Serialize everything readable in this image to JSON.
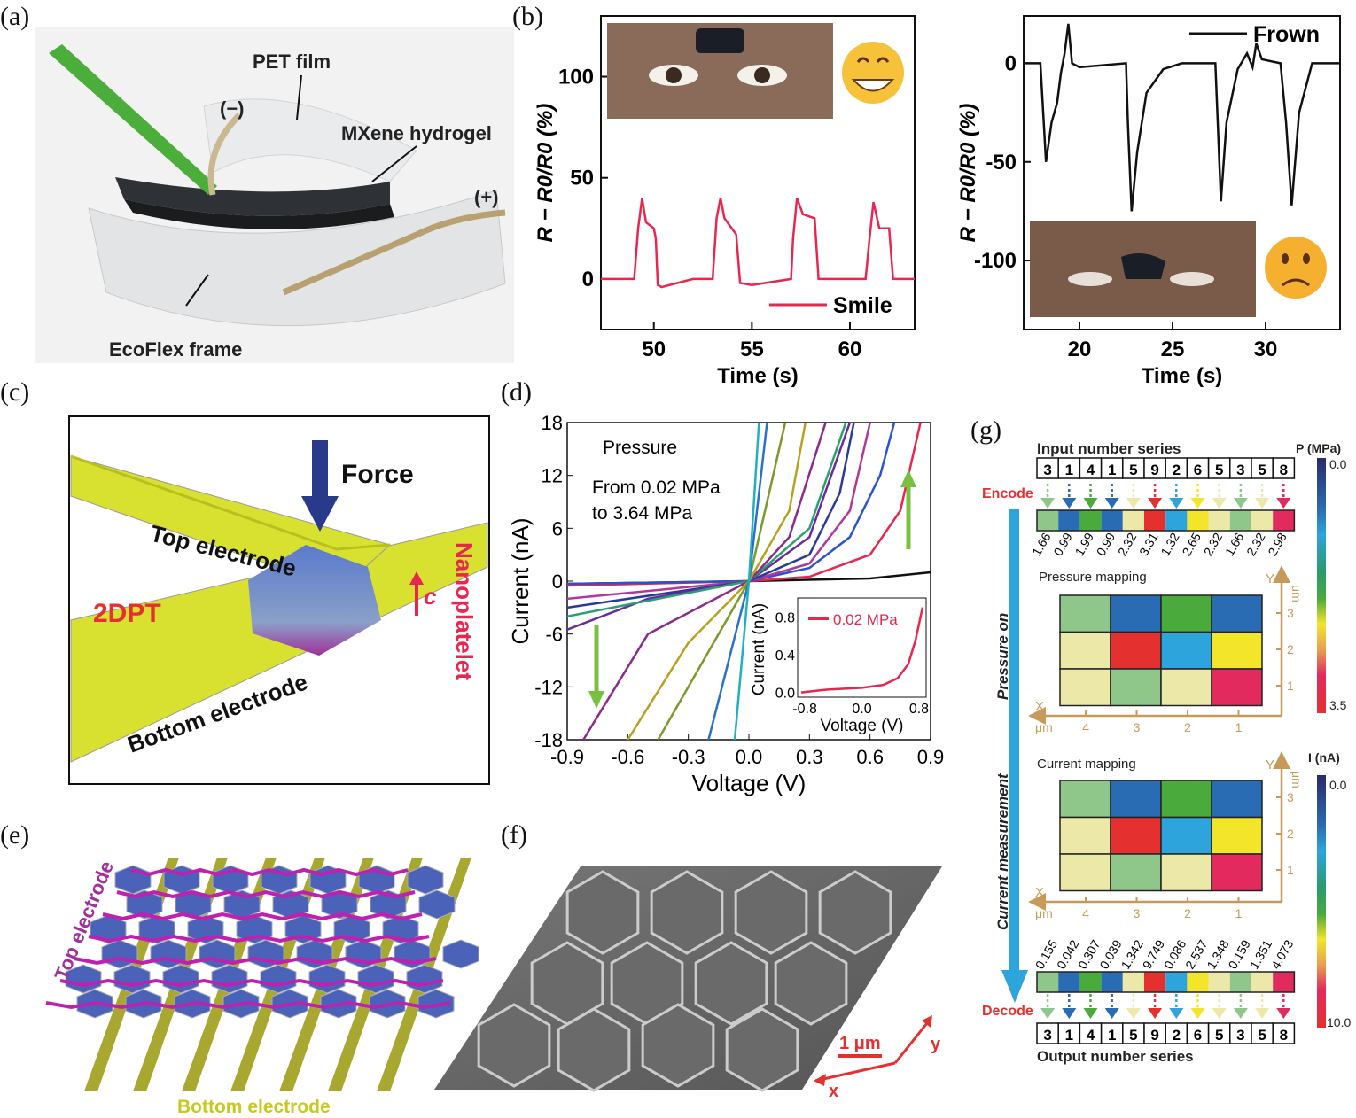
{
  "panel_labels": [
    "(a)",
    "(b)",
    "(c)",
    "(d)",
    "(e)",
    "(f)",
    "(g)"
  ],
  "panel_a": {
    "pet_film": "PET film",
    "minus": "(−)",
    "plus": "(+)",
    "mxene": "MXene hydrogel",
    "ecoflex": "EcoFlex frame"
  },
  "panel_c": {
    "force": "Force",
    "top_electrode": "Top electrode",
    "bottom_electrode": "Bottom electrode",
    "material": "2DPT",
    "nanoplatelet": "Nanoplatelet",
    "axis_c": "c"
  },
  "panel_e": {
    "top_electrode": "Top electrode",
    "bottom_electrode": "Bottom electrode"
  },
  "panel_f": {
    "scale": "1 μm",
    "x": "x",
    "y": "y"
  },
  "chart_data": [
    {
      "id": "b-smile",
      "type": "line",
      "xlabel": "Time (s)",
      "ylabel": "R − R0/R0 (%)",
      "xlim": [
        47.3,
        63.3
      ],
      "ylim": [
        -25,
        130
      ],
      "xticks": [
        50,
        55,
        60
      ],
      "yticks": [
        0,
        50,
        100
      ],
      "legend": "bottom-right",
      "series": [
        {
          "name": "Smile",
          "color": "#e8264f",
          "points": [
            [
              47.3,
              0
            ],
            [
              49.0,
              0
            ],
            [
              49.2,
              25
            ],
            [
              49.4,
              40
            ],
            [
              49.6,
              28
            ],
            [
              50.0,
              25
            ],
            [
              50.1,
              20
            ],
            [
              50.2,
              -3
            ],
            [
              50.4,
              -4
            ],
            [
              52,
              0
            ],
            [
              53.0,
              0
            ],
            [
              53.2,
              30
            ],
            [
              53.4,
              40
            ],
            [
              53.6,
              30
            ],
            [
              54.2,
              22
            ],
            [
              54.4,
              -2
            ],
            [
              55,
              -3
            ],
            [
              57,
              0
            ],
            [
              57.1,
              20
            ],
            [
              57.3,
              40
            ],
            [
              57.6,
              32
            ],
            [
              58.2,
              30
            ],
            [
              58.4,
              0
            ],
            [
              60.8,
              0
            ],
            [
              61.0,
              20
            ],
            [
              61.2,
              38
            ],
            [
              61.5,
              25
            ],
            [
              62,
              25
            ],
            [
              62.2,
              0
            ],
            [
              63.3,
              0
            ]
          ]
        }
      ]
    },
    {
      "id": "b-frown",
      "type": "line",
      "xlabel": "Time (s)",
      "ylabel": "R − R0/R0 (%)",
      "xlim": [
        17,
        34
      ],
      "ylim": [
        -135,
        24
      ],
      "xticks": [
        20,
        25,
        30
      ],
      "yticks": [
        0,
        -50,
        -100
      ],
      "legend": "top-right",
      "series": [
        {
          "name": "Frown",
          "color": "#111111",
          "points": [
            [
              17,
              0
            ],
            [
              17.9,
              0
            ],
            [
              18.2,
              -50
            ],
            [
              18.5,
              -30
            ],
            [
              18.8,
              -20
            ],
            [
              19.0,
              -5
            ],
            [
              19.2,
              5
            ],
            [
              19.4,
              20
            ],
            [
              19.6,
              0
            ],
            [
              20,
              -2
            ],
            [
              22.5,
              0
            ],
            [
              22.6,
              -30
            ],
            [
              22.8,
              -75
            ],
            [
              23.1,
              -45
            ],
            [
              23.6,
              -15
            ],
            [
              24.5,
              -3
            ],
            [
              25.5,
              0
            ],
            [
              27.3,
              0
            ],
            [
              27.6,
              -70
            ],
            [
              27.9,
              -30
            ],
            [
              28.5,
              -3
            ],
            [
              29,
              5
            ],
            [
              29.3,
              -2
            ],
            [
              29.5,
              10
            ],
            [
              29.8,
              2
            ],
            [
              30.8,
              0
            ],
            [
              31.1,
              -30
            ],
            [
              31.4,
              -72
            ],
            [
              31.8,
              -25
            ],
            [
              32.5,
              0
            ],
            [
              34,
              0
            ]
          ]
        }
      ]
    },
    {
      "id": "d-iv",
      "type": "line",
      "xlabel": "Voltage (V)",
      "ylabel": "Current (nA)",
      "xlim": [
        -0.9,
        0.9
      ],
      "ylim": [
        -18,
        18
      ],
      "xticks": [
        "-0.9",
        "-0.6",
        "-0.3",
        "0.0",
        "0.3",
        "0.6",
        "0.9"
      ],
      "yticks": [
        "18",
        "12",
        "6",
        "0",
        "-6",
        "-12",
        "-18"
      ],
      "annotations": [
        "Pressure",
        "From 0.02 MPa",
        "to 3.64 MPa"
      ],
      "series": [
        {
          "color": "#111111",
          "points": [
            [
              -0.9,
              -0.3
            ],
            [
              0,
              0
            ],
            [
              0.6,
              0.3
            ],
            [
              0.9,
              1
            ]
          ]
        },
        {
          "color": "#e8264f",
          "points": [
            [
              -0.9,
              -0.5
            ],
            [
              0,
              0
            ],
            [
              0.3,
              0.5
            ],
            [
              0.6,
              3
            ],
            [
              0.75,
              8
            ],
            [
              0.85,
              18
            ]
          ]
        },
        {
          "color": "#2a55c8",
          "points": [
            [
              -0.9,
              -0.3
            ],
            [
              0,
              0
            ],
            [
              0.3,
              1.5
            ],
            [
              0.5,
              5
            ],
            [
              0.65,
              12
            ],
            [
              0.72,
              18
            ]
          ]
        },
        {
          "color": "#b0389a",
          "points": [
            [
              -0.9,
              -2
            ],
            [
              0,
              0
            ],
            [
              0.3,
              2
            ],
            [
              0.5,
              8
            ],
            [
              0.6,
              18
            ]
          ]
        },
        {
          "color": "#2a3a9a",
          "points": [
            [
              -0.9,
              -3
            ],
            [
              0,
              0
            ],
            [
              0.3,
              3
            ],
            [
              0.45,
              10
            ],
            [
              0.52,
              18
            ]
          ]
        },
        {
          "color": "#6a2aa0",
          "points": [
            [
              -0.9,
              -5.5
            ],
            [
              -0.5,
              -2
            ],
            [
              0,
              0
            ],
            [
              0.3,
              5
            ],
            [
              0.5,
              18
            ]
          ]
        },
        {
          "color": "#2aa070",
          "points": [
            [
              -0.9,
              -4
            ],
            [
              0,
              0
            ],
            [
              0.3,
              6
            ],
            [
              0.48,
              18
            ]
          ]
        },
        {
          "color": "#8a2a8a",
          "points": [
            [
              -0.82,
              -18
            ],
            [
              -0.5,
              -6
            ],
            [
              0,
              0
            ],
            [
              0.2,
              5
            ],
            [
              0.38,
              18
            ]
          ]
        },
        {
          "color": "#b8a020",
          "points": [
            [
              -0.6,
              -18
            ],
            [
              -0.3,
              -7
            ],
            [
              0,
              0
            ],
            [
              0.2,
              8
            ],
            [
              0.28,
              18
            ]
          ]
        },
        {
          "color": "#7a9a2a",
          "points": [
            [
              -0.45,
              -18
            ],
            [
              0,
              0
            ],
            [
              0.18,
              18
            ]
          ]
        },
        {
          "color": "#2a70c8",
          "points": [
            [
              -0.2,
              -18
            ],
            [
              0,
              0
            ],
            [
              0.09,
              18
            ]
          ]
        },
        {
          "color": "#20b0c0",
          "points": [
            [
              -0.07,
              -18
            ],
            [
              0,
              0
            ],
            [
              0.05,
              18
            ]
          ]
        }
      ],
      "inset": {
        "xlabel": "Voltage (V)",
        "ylabel": "Current (nA)",
        "xlim": [
          -0.9,
          0.9
        ],
        "ylim": [
          -0.05,
          1.0
        ],
        "xticks": [
          "-0.8",
          "0.0",
          "0.8"
        ],
        "yticks": [
          "0.8",
          "0.4",
          "0.0"
        ],
        "series": [
          {
            "name": "0.02 MPa",
            "color": "#e8264f",
            "points": [
              [
                -0.85,
                0.0
              ],
              [
                -0.5,
                0.03
              ],
              [
                0,
                0.05
              ],
              [
                0.3,
                0.08
              ],
              [
                0.5,
                0.15
              ],
              [
                0.65,
                0.3
              ],
              [
                0.75,
                0.55
              ],
              [
                0.85,
                0.9
              ]
            ]
          }
        ]
      }
    }
  ],
  "panel_g": {
    "input_title": "Input number series",
    "output_title": "Output number series",
    "encode": "Encode",
    "decode": "Decode",
    "pressure_on": "Pressure on",
    "current_measurement": "Current measurement",
    "pressure_mapping": "Pressure mapping",
    "current_mapping": "Current mapping",
    "x_axis": "X",
    "y_axis": "Y",
    "unit": "μm",
    "x_ticks": [
      "4",
      "3",
      "2",
      "1"
    ],
    "y_ticks": [
      "3",
      "2",
      "1"
    ],
    "digits": [
      "3",
      "1",
      "4",
      "1",
      "5",
      "9",
      "2",
      "6",
      "5",
      "3",
      "5",
      "8"
    ],
    "digit_colors": {
      "1": "#2a6cb3",
      "2": "#2ea4dc",
      "3": "#8fc78a",
      "4": "#4aaa3c",
      "5": "#ece9a8",
      "6": "#f2e52a",
      "8": "#e22a5e",
      "9": "#e53030"
    },
    "pressures": [
      "1.66",
      "0.99",
      "1.99",
      "0.99",
      "2.32",
      "3.31",
      "1.32",
      "2.65",
      "2.32",
      "1.66",
      "2.32",
      "2.98"
    ],
    "currents": [
      "0.155",
      "0.042",
      "0.307",
      "0.039",
      "1.342",
      "9.749",
      "0.086",
      "2.537",
      "1.348",
      "0.159",
      "1.351",
      "4.073"
    ],
    "grid_rows": [
      [
        "3",
        "1",
        "4",
        "1"
      ],
      [
        "5",
        "9",
        "2",
        "6"
      ],
      [
        "5",
        "3",
        "5",
        "8"
      ]
    ],
    "colorbar_p": {
      "title": "P (MPa)",
      "min": "0.0",
      "max": "3.5"
    },
    "colorbar_i": {
      "title": "I (nA)",
      "min": "0.0",
      "max": "10.0"
    }
  }
}
